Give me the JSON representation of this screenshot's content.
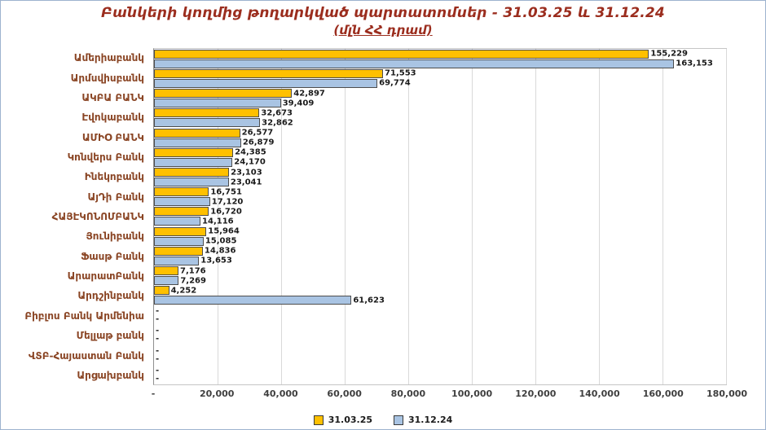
{
  "header": {
    "title": "Բանկերի կողմից թողարկված պարտատոմսեր - 31.03.25 և 31.12.24",
    "subtitle": "(մլն ՀՀ դրամ)"
  },
  "colors": {
    "series1": "#FFC000",
    "series2": "#A9C4E3",
    "title": "#9B2D1E",
    "category_label": "#8A4524",
    "gridline": "#D9D9D9",
    "value_label": "#1A1A1A"
  },
  "chart_data": {
    "type": "bar",
    "orientation": "horizontal",
    "title": "Բանկերի կողմից թողարկված պարտատոմսեր - 31.03.25 և 31.12.24",
    "subtitle": "(մլն ՀՀ դրամ)",
    "xlim": [
      0,
      180000
    ],
    "x_tick_labels": [
      "-",
      "20,000",
      "40,000",
      "60,000",
      "80,000",
      "100,000",
      "120,000",
      "140,000",
      "160,000",
      "180,000"
    ],
    "grid": "vertical",
    "legend_position": "bottom",
    "null_label": "-",
    "categories": [
      "Ամերիաբանկ",
      "Արմսվիսբանկ",
      "ԱԿԲԱ ԲԱՆԿ",
      "Էվոկաբանկ",
      "ԱՄԻՕ ԲԱՆԿ",
      "Կոնվերս Բանկ",
      "Ինեկոբանկ",
      "ԱյԴի Բանկ",
      "ՀԱՅԷԿՈՆՈՄԲԱՆԿ",
      "Յունիբանկ",
      "Ֆասթ Բանկ",
      "ԱրարատԲանկ",
      "Արդշինբանկ",
      "Բիբլոս Բանկ Արմենիա",
      "Մելլաթ բանկ",
      "ՎՏԲ-Հայաստան Բանկ",
      "Արցախբանկ"
    ],
    "series": [
      {
        "name": "31.03.25",
        "color": "#FFC000",
        "values": [
          155229,
          71553,
          42897,
          32673,
          26577,
          24385,
          23103,
          16751,
          16720,
          15964,
          14836,
          7176,
          4252,
          null,
          null,
          null,
          null
        ]
      },
      {
        "name": "31.12.24",
        "color": "#A9C4E3",
        "values": [
          163153,
          69774,
          39409,
          32862,
          26879,
          24170,
          23041,
          17120,
          14116,
          15085,
          13653,
          7269,
          61623,
          null,
          null,
          null,
          null
        ]
      }
    ]
  }
}
